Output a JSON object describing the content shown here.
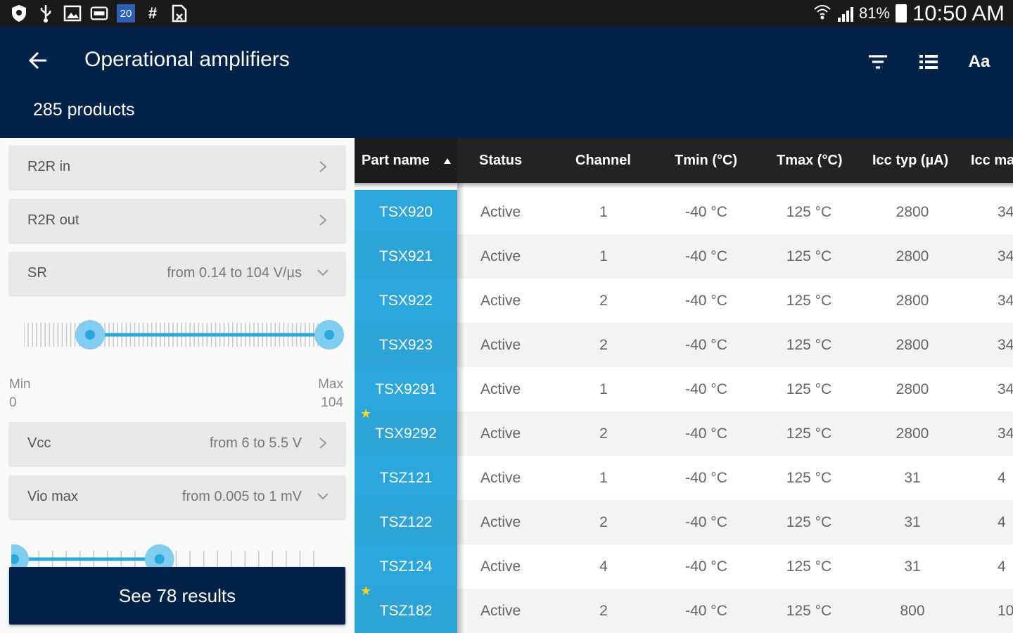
{
  "status_bar": {
    "battery": "81%",
    "time": "10:50 AM",
    "notification_icons": [
      "shield-icon",
      "usb-icon",
      "image-icon",
      "storage-icon",
      "calendar-icon",
      "hash-icon",
      "document-icon"
    ],
    "calendar_day": "20"
  },
  "header": {
    "title": "Operational amplifiers",
    "product_count": "285 products",
    "actions": [
      "filter-icon",
      "list-view-icon",
      "text-size-icon"
    ],
    "text_size_label": "Aa"
  },
  "filters": {
    "r2r_in": {
      "label": "R2R in"
    },
    "r2r_out": {
      "label": "R2R out"
    },
    "sr": {
      "label": "SR",
      "value": "from 0.14 to 104 V/µs",
      "min_label": "Min",
      "min_value": "0",
      "max_label": "Max",
      "max_value": "104",
      "slider_low": 0.2,
      "slider_high": 1.0
    },
    "vcc": {
      "label": "Vcc",
      "value": "from 6 to 5.5 V"
    },
    "vio_max": {
      "label": "Vio max",
      "value": "from 0.005 to 1 mV",
      "slider_low": 0.0,
      "slider_high": 0.49
    },
    "see_results": "See 78 results"
  },
  "table": {
    "columns": [
      "Part name",
      "Status",
      "Channel",
      "Tmin (°C)",
      "Tmax (°C)",
      "Icc typ (µA)",
      "Icc ma"
    ],
    "sort_column": "Part name",
    "rows": [
      {
        "part": "TSX920",
        "status": "Active",
        "channel": "1",
        "tmin": "-40 °C",
        "tmax": "125 °C",
        "icc_typ": "2800",
        "icc_max": "34",
        "starred": false
      },
      {
        "part": "TSX921",
        "status": "Active",
        "channel": "1",
        "tmin": "-40 °C",
        "tmax": "125 °C",
        "icc_typ": "2800",
        "icc_max": "34",
        "starred": false
      },
      {
        "part": "TSX922",
        "status": "Active",
        "channel": "2",
        "tmin": "-40 °C",
        "tmax": "125 °C",
        "icc_typ": "2800",
        "icc_max": "34",
        "starred": false
      },
      {
        "part": "TSX923",
        "status": "Active",
        "channel": "2",
        "tmin": "-40 °C",
        "tmax": "125 °C",
        "icc_typ": "2800",
        "icc_max": "34",
        "starred": false
      },
      {
        "part": "TSX9291",
        "status": "Active",
        "channel": "1",
        "tmin": "-40 °C",
        "tmax": "125 °C",
        "icc_typ": "2800",
        "icc_max": "34",
        "starred": false
      },
      {
        "part": "TSX9292",
        "status": "Active",
        "channel": "2",
        "tmin": "-40 °C",
        "tmax": "125 °C",
        "icc_typ": "2800",
        "icc_max": "34",
        "starred": true
      },
      {
        "part": "TSZ121",
        "status": "Active",
        "channel": "1",
        "tmin": "-40 °C",
        "tmax": "125 °C",
        "icc_typ": "31",
        "icc_max": "4",
        "starred": false
      },
      {
        "part": "TSZ122",
        "status": "Active",
        "channel": "2",
        "tmin": "-40 °C",
        "tmax": "125 °C",
        "icc_typ": "31",
        "icc_max": "4",
        "starred": false
      },
      {
        "part": "TSZ124",
        "status": "Active",
        "channel": "4",
        "tmin": "-40 °C",
        "tmax": "125 °C",
        "icc_typ": "31",
        "icc_max": "4",
        "starred": false
      },
      {
        "part": "TSZ182",
        "status": "Active",
        "channel": "2",
        "tmin": "-40 °C",
        "tmax": "125 °C",
        "icc_typ": "800",
        "icc_max": "10",
        "starred": true
      }
    ]
  },
  "colors": {
    "header_bg": "#03234b",
    "accent": "#2aa7dd",
    "star": "#ffd21c",
    "table_header_bg": "#232323"
  }
}
